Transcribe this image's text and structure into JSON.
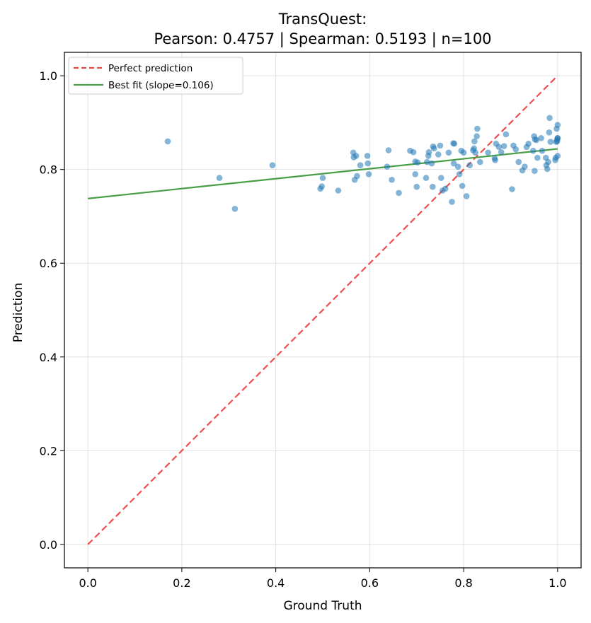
{
  "chart_data": {
    "type": "scatter",
    "title_line1": "TransQuest:",
    "title_line2": "Pearson: 0.4757 | Spearman: 0.5193 | n=100",
    "xlabel": "Ground Truth",
    "ylabel": "Prediction",
    "xlim": [
      -0.05,
      1.05
    ],
    "ylim": [
      -0.05,
      1.05
    ],
    "xticks": [
      0.0,
      0.2,
      0.4,
      0.6,
      0.8,
      1.0
    ],
    "yticks": [
      0.0,
      0.2,
      0.4,
      0.6,
      0.8,
      1.0
    ],
    "xtick_labels": [
      "0.0",
      "0.2",
      "0.4",
      "0.6",
      "0.8",
      "1.0"
    ],
    "ytick_labels": [
      "0.0",
      "0.2",
      "0.4",
      "0.6",
      "0.8",
      "1.0"
    ],
    "grid": true,
    "legend_position": "upper-left",
    "legend": [
      {
        "label": "Perfect prediction",
        "color": "#ef4444",
        "style": "dashed"
      },
      {
        "label": "Best fit (slope=0.106)",
        "color": "#4a9e47",
        "style": "solid"
      }
    ],
    "colors": {
      "points": "#1f77b4",
      "perfect": "#ef4444",
      "fit": "#4a9e47"
    },
    "perfect_line": {
      "x": [
        0.0,
        1.0
      ],
      "y": [
        0.0,
        1.0
      ]
    },
    "fit_line": {
      "x": [
        0.0,
        1.0
      ],
      "y": [
        0.738,
        0.844
      ]
    },
    "points": [
      [
        0.17,
        0.86
      ],
      [
        0.28,
        0.782
      ],
      [
        0.313,
        0.716
      ],
      [
        0.393,
        0.809
      ],
      [
        0.495,
        0.759
      ],
      [
        0.498,
        0.764
      ],
      [
        0.5,
        0.782
      ],
      [
        0.533,
        0.755
      ],
      [
        0.565,
        0.836
      ],
      [
        0.566,
        0.826
      ],
      [
        0.568,
        0.778
      ],
      [
        0.571,
        0.829
      ],
      [
        0.573,
        0.786
      ],
      [
        0.58,
        0.809
      ],
      [
        0.595,
        0.829
      ],
      [
        0.596,
        0.813
      ],
      [
        0.598,
        0.79
      ],
      [
        0.637,
        0.806
      ],
      [
        0.64,
        0.841
      ],
      [
        0.647,
        0.778
      ],
      [
        0.662,
        0.75
      ],
      [
        0.686,
        0.84
      ],
      [
        0.693,
        0.837
      ],
      [
        0.697,
        0.79
      ],
      [
        0.697,
        0.817
      ],
      [
        0.7,
        0.763
      ],
      [
        0.702,
        0.815
      ],
      [
        0.72,
        0.782
      ],
      [
        0.722,
        0.816
      ],
      [
        0.725,
        0.829
      ],
      [
        0.726,
        0.837
      ],
      [
        0.732,
        0.813
      ],
      [
        0.734,
        0.763
      ],
      [
        0.735,
        0.849
      ],
      [
        0.737,
        0.845
      ],
      [
        0.746,
        0.832
      ],
      [
        0.75,
        0.851
      ],
      [
        0.752,
        0.782
      ],
      [
        0.755,
        0.755
      ],
      [
        0.761,
        0.759
      ],
      [
        0.768,
        0.836
      ],
      [
        0.775,
        0.731
      ],
      [
        0.778,
        0.856
      ],
      [
        0.779,
        0.813
      ],
      [
        0.78,
        0.855
      ],
      [
        0.788,
        0.806
      ],
      [
        0.791,
        0.79
      ],
      [
        0.795,
        0.84
      ],
      [
        0.797,
        0.765
      ],
      [
        0.8,
        0.836
      ],
      [
        0.806,
        0.743
      ],
      [
        0.813,
        0.809
      ],
      [
        0.82,
        0.841
      ],
      [
        0.822,
        0.845
      ],
      [
        0.823,
        0.86
      ],
      [
        0.825,
        0.836
      ],
      [
        0.828,
        0.871
      ],
      [
        0.829,
        0.887
      ],
      [
        0.835,
        0.816
      ],
      [
        0.852,
        0.836
      ],
      [
        0.866,
        0.824
      ],
      [
        0.867,
        0.82
      ],
      [
        0.869,
        0.855
      ],
      [
        0.875,
        0.848
      ],
      [
        0.88,
        0.837
      ],
      [
        0.886,
        0.85
      ],
      [
        0.89,
        0.875
      ],
      [
        0.903,
        0.758
      ],
      [
        0.906,
        0.851
      ],
      [
        0.911,
        0.843
      ],
      [
        0.917,
        0.816
      ],
      [
        0.925,
        0.798
      ],
      [
        0.93,
        0.806
      ],
      [
        0.934,
        0.848
      ],
      [
        0.938,
        0.855
      ],
      [
        0.948,
        0.84
      ],
      [
        0.95,
        0.871
      ],
      [
        0.951,
        0.797
      ],
      [
        0.952,
        0.864
      ],
      [
        0.957,
        0.825
      ],
      [
        0.965,
        0.867
      ],
      [
        0.967,
        0.84
      ],
      [
        0.975,
        0.825
      ],
      [
        0.976,
        0.809
      ],
      [
        0.978,
        0.801
      ],
      [
        0.98,
        0.816
      ],
      [
        0.982,
        0.879
      ],
      [
        0.983,
        0.91
      ],
      [
        0.985,
        0.859
      ],
      [
        0.995,
        0.82
      ],
      [
        0.996,
        0.825
      ],
      [
        0.997,
        0.859
      ],
      [
        0.998,
        0.887
      ],
      [
        0.999,
        0.863
      ],
      [
        1.0,
        0.829
      ],
      [
        1.0,
        0.867
      ],
      [
        1.0,
        0.895
      ],
      [
        1.0,
        0.867
      ],
      [
        0.999,
        0.86
      ],
      [
        0.955,
        0.863
      ]
    ]
  }
}
